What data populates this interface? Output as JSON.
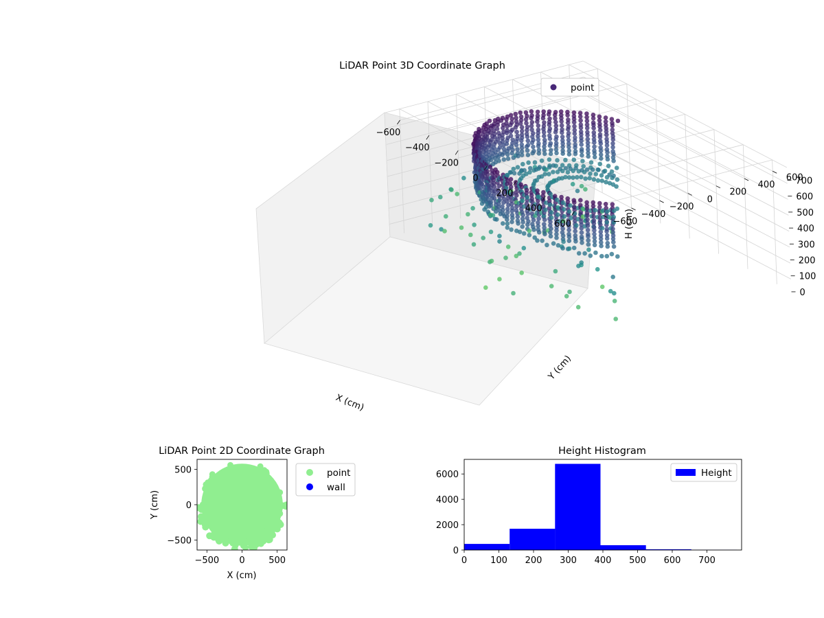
{
  "colors": {
    "point_3d": "#482878",
    "point_2d": "#90ee90",
    "wall": "#0000ff",
    "hist": "#0000ff",
    "pane": "#f2f2f2",
    "grid": "#d9d9d9"
  },
  "chart_data": [
    {
      "type": "scatter3d",
      "title": "LiDAR Point 3D Coordinate Graph",
      "xlabel": "X (cm)",
      "ylabel": "Y (cm)",
      "zlabel": "H (cm)",
      "xlim": [
        -700,
        700
      ],
      "ylim": [
        -700,
        700
      ],
      "zlim": [
        0,
        780
      ],
      "z_inverted": true,
      "xticks": [
        -600,
        -400,
        -200,
        0,
        200,
        400,
        600
      ],
      "yticks": [
        -600,
        -400,
        -200,
        0,
        200,
        400,
        600
      ],
      "zticks": [
        0,
        100,
        200,
        300,
        400,
        500,
        600,
        700
      ],
      "colormap": "viridis",
      "legend": {
        "position": "top-right",
        "entries": [
          "point"
        ]
      },
      "series": [
        {
          "name": "point",
          "shape": "bowl wall r≈550 cm, H 100–400 cm, floor ring r≈420 cm at H≈330 cm, scattered outliers H 450–750 cm"
        }
      ]
    },
    {
      "type": "scatter",
      "title": "LiDAR Point 2D Coordinate Graph",
      "xlabel": "X (cm)",
      "ylabel": "Y (cm)",
      "xlim": [
        -640,
        640
      ],
      "ylim": [
        -640,
        640
      ],
      "xticks": [
        -500,
        0,
        500
      ],
      "yticks": [
        -500,
        0,
        500
      ],
      "legend": {
        "position": "right",
        "entries": [
          "point",
          "wall"
        ]
      },
      "series": [
        {
          "name": "point",
          "shape": "filled disk r≈580 cm with scattered points along the lower boundary"
        },
        {
          "name": "wall",
          "values": []
        }
      ]
    },
    {
      "type": "bar",
      "title": "Height Histogram",
      "xlabel": "",
      "ylabel": "",
      "xlim": [
        0,
        800
      ],
      "ylim": [
        0,
        7150
      ],
      "xticks": [
        0,
        100,
        200,
        300,
        400,
        500,
        600,
        700
      ],
      "yticks": [
        0,
        2000,
        4000,
        6000
      ],
      "legend": {
        "position": "top-right",
        "entries": [
          "Height"
        ]
      },
      "bins": [
        [
          0,
          131
        ],
        [
          131,
          262
        ],
        [
          262,
          393
        ],
        [
          393,
          524
        ],
        [
          524,
          655
        ],
        [
          655,
          786
        ]
      ],
      "values": [
        480,
        1680,
        6800,
        380,
        60,
        15
      ],
      "series": [
        {
          "name": "Height",
          "values": [
            480,
            1680,
            6800,
            380,
            60,
            15
          ]
        }
      ]
    }
  ]
}
